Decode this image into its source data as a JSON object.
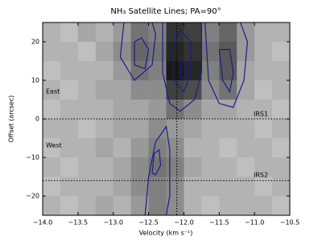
{
  "chart_data": {
    "type": "heatmap",
    "title": "NH₃ Satellite Lines; PA=90°",
    "x_label": "Velocity (km s⁻¹)",
    "y_label": "Offset (arcsec)",
    "xlim": [
      -14,
      -10.5
    ],
    "ylim": [
      -25,
      25
    ],
    "xticks": [
      {
        "value": -14,
        "label": "−14.0"
      },
      {
        "value": -13.5,
        "label": "−13.5"
      },
      {
        "value": -13,
        "label": "−13.0"
      },
      {
        "value": -12.5,
        "label": "−12.5"
      },
      {
        "value": -12,
        "label": "−12.0"
      },
      {
        "value": -11.5,
        "label": "−11.5"
      },
      {
        "value": -11,
        "label": "−11.0"
      },
      {
        "value": -10.5,
        "label": "−10.5"
      }
    ],
    "yticks": [
      {
        "value": -20,
        "label": "−20"
      },
      {
        "value": -10,
        "label": "−10"
      },
      0,
      10,
      20
    ],
    "colormap": "gray_r",
    "heatmap": {
      "x": [
        -13.875,
        -13.625,
        -13.375,
        -13.125,
        -12.875,
        -12.625,
        -12.375,
        -12.125,
        -11.875,
        -11.625,
        -11.375,
        -11.125,
        -10.875,
        -10.625
      ],
      "y": [
        22.5,
        17.5,
        12.5,
        7.5,
        2.5,
        -2.5,
        -7.5,
        -12.5,
        -17.5,
        -22.5
      ],
      "values": [
        [
          0.3,
          0.25,
          0.35,
          0.3,
          0.4,
          0.55,
          0.5,
          0.8,
          0.75,
          0.5,
          0.6,
          0.4,
          0.3,
          0.3
        ],
        [
          0.3,
          0.3,
          0.25,
          0.35,
          0.45,
          0.6,
          0.55,
          0.85,
          0.8,
          0.55,
          0.65,
          0.4,
          0.3,
          0.25
        ],
        [
          0.25,
          0.3,
          0.3,
          0.3,
          0.4,
          0.55,
          0.5,
          0.9,
          0.85,
          0.5,
          0.65,
          0.35,
          0.3,
          0.3
        ],
        [
          0.3,
          0.25,
          0.3,
          0.35,
          0.35,
          0.45,
          0.45,
          0.75,
          0.7,
          0.45,
          0.55,
          0.35,
          0.25,
          0.3
        ],
        [
          0.25,
          0.3,
          0.3,
          0.3,
          0.35,
          0.35,
          0.4,
          0.55,
          0.45,
          0.35,
          0.35,
          0.3,
          0.3,
          0.25
        ],
        [
          0.3,
          0.3,
          0.25,
          0.3,
          0.35,
          0.35,
          0.45,
          0.4,
          0.35,
          0.3,
          0.3,
          0.3,
          0.25,
          0.3
        ],
        [
          0.25,
          0.3,
          0.3,
          0.35,
          0.3,
          0.4,
          0.5,
          0.45,
          0.3,
          0.3,
          0.25,
          0.3,
          0.3,
          0.25
        ],
        [
          0.3,
          0.25,
          0.3,
          0.3,
          0.35,
          0.45,
          0.55,
          0.5,
          0.35,
          0.3,
          0.3,
          0.25,
          0.3,
          0.3
        ],
        [
          0.25,
          0.3,
          0.3,
          0.3,
          0.35,
          0.45,
          0.5,
          0.45,
          0.3,
          0.3,
          0.3,
          0.3,
          0.25,
          0.3
        ],
        [
          0.3,
          0.25,
          0.3,
          0.35,
          0.3,
          0.4,
          0.5,
          0.45,
          0.3,
          0.25,
          0.3,
          0.3,
          0.3,
          0.25
        ]
      ]
    },
    "contour_color": "#1c1c8f",
    "contours": [
      {
        "points": [
          [
            -12.85,
            25
          ],
          [
            -12.9,
            16
          ],
          [
            -12.7,
            10
          ],
          [
            -12.45,
            14
          ],
          [
            -12.4,
            22
          ],
          [
            -12.45,
            25
          ]
        ]
      },
      {
        "points": [
          [
            -12.7,
            20
          ],
          [
            -12.7,
            14
          ],
          [
            -12.55,
            13
          ],
          [
            -12.5,
            18
          ],
          [
            -12.6,
            21
          ],
          [
            -12.7,
            20
          ]
        ]
      },
      {
        "points": [
          [
            -12.3,
            25
          ],
          [
            -12.3,
            12
          ],
          [
            -12.2,
            4
          ],
          [
            -12.05,
            2
          ],
          [
            -11.85,
            5
          ],
          [
            -11.75,
            12
          ],
          [
            -11.75,
            25
          ]
        ]
      },
      {
        "points": [
          [
            -12.15,
            20
          ],
          [
            -12.15,
            10
          ],
          [
            -12.0,
            7
          ],
          [
            -11.9,
            12
          ],
          [
            -11.9,
            20
          ],
          [
            -12.05,
            23
          ],
          [
            -12.15,
            20
          ]
        ]
      },
      {
        "points": [
          [
            -12.05,
            15
          ],
          [
            -12.05,
            11
          ],
          [
            -11.98,
            10
          ],
          [
            -11.95,
            14
          ],
          [
            -12.05,
            15
          ]
        ]
      },
      {
        "points": [
          [
            -11.7,
            25
          ],
          [
            -11.65,
            10
          ],
          [
            -11.5,
            4
          ],
          [
            -11.3,
            3
          ],
          [
            -11.15,
            10
          ],
          [
            -11.1,
            20
          ],
          [
            -11.2,
            25
          ]
        ]
      },
      {
        "points": [
          [
            -11.5,
            18
          ],
          [
            -11.45,
            10
          ],
          [
            -11.35,
            7
          ],
          [
            -11.3,
            12
          ],
          [
            -11.35,
            18
          ],
          [
            -11.5,
            18
          ]
        ]
      },
      {
        "points": [
          [
            -12.55,
            -25
          ],
          [
            -12.5,
            -15
          ],
          [
            -12.4,
            -6
          ],
          [
            -12.25,
            -2
          ],
          [
            -12.2,
            -8
          ],
          [
            -12.2,
            -20
          ],
          [
            -12.25,
            -25
          ]
        ]
      },
      {
        "points": [
          [
            -12.45,
            -14
          ],
          [
            -12.42,
            -9
          ],
          [
            -12.35,
            -8
          ],
          [
            -12.33,
            -12
          ],
          [
            -12.4,
            -14.5
          ],
          [
            -12.45,
            -14
          ]
        ]
      }
    ],
    "vlines": [
      -12.1
    ],
    "hlines": [
      0,
      -16
    ],
    "annotations": [
      "East",
      "West",
      "IRS1",
      "IRS2"
    ]
  }
}
